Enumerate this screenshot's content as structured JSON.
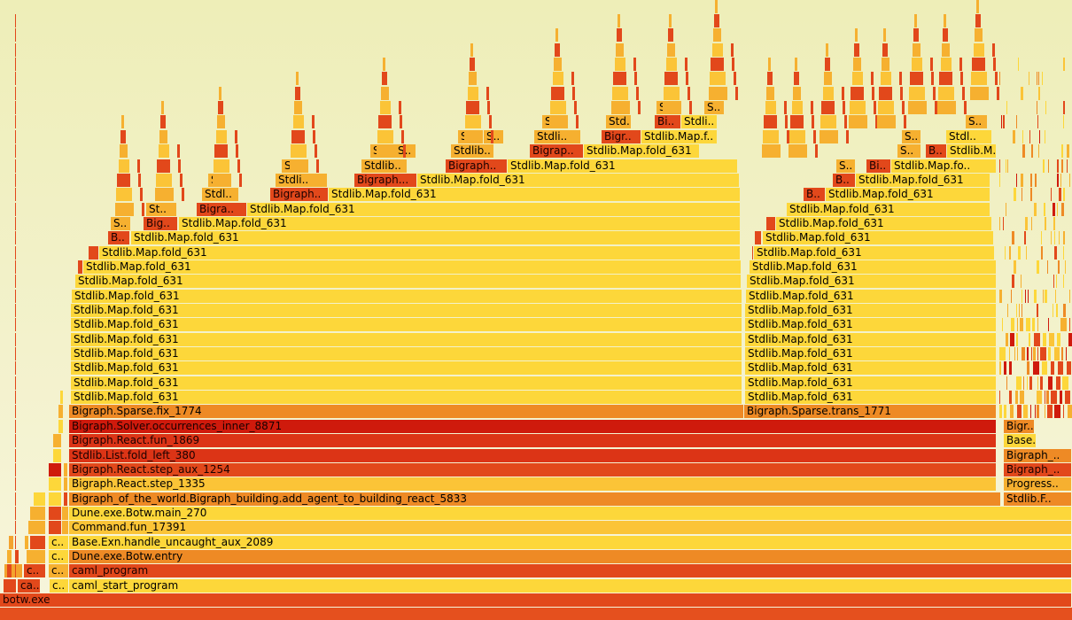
{
  "frames": [
    "botw.exe",
    "ca..",
    "c..",
    "caml_start_program",
    "c..",
    "c..",
    "caml_program",
    "c..",
    "Dune.exe.Botw.entry",
    "c..",
    "Base.Exn.handle_uncaught_aux_2089",
    "Command.fun_17391",
    "Dune.exe.Botw.main_270",
    "Bigraph_of_the_world.Bigraph_building.add_agent_to_building_react_5833",
    "Stdlib.F..",
    "Bigraph.React.step_1335",
    "Progress..",
    "Bigraph.React.step_aux_1254",
    "Bigraph_..",
    "Stdlib.List.fold_left_380",
    "Bigraph_..",
    "Bigraph.React.fun_1869",
    "Base..",
    "Bigraph.Solver.occurrences_inner_8871",
    "Bigr..",
    "Bigraph.Sparse.fix_1774",
    "Bigraph.Sparse.trans_1771",
    "Stdlib.Map.fold_631",
    "Stdlib.Map.fold_631",
    "Stdlib.Map.fold_631",
    "Stdlib.Map.fold_631",
    "Stdlib.Map.fold_631",
    "Stdlib.Map.fold_631",
    "Stdlib.Map.fold_631",
    "Stdlib.Map.fold_631",
    "Stdlib.Map.fold_631",
    "Stdlib.Map.fold_631",
    "Stdlib.Map.fold_631",
    "Stdlib.Map.fold_631",
    "Stdlib.Map.fold_631",
    "Stdlib.Map.fold_631",
    "Stdlib.Map.fold_631",
    "Stdlib.Map.fold_631",
    "Stdlib.Map.fold_631",
    "Stdlib.Map.fold_631",
    "Stdlib.Map.fold_631",
    "Stdlib.Map.fold_631",
    "Stdlib.Map.fold_631",
    "Stdlib.Map.fold_631",
    "B..",
    "Stdlib.Map.fold_631",
    "Stdlib.Map.fold_631",
    "S..",
    "Big..",
    "Stdlib.Map.fold_631",
    "Stdlib.Map.fold_631",
    "St..",
    "Bigra..",
    "Stdlib.Map.fold_631",
    "Stdlib.Map.fold_631",
    "Stdl..",
    "Bigraph..",
    "Stdlib.Map.fold_631",
    "B..",
    "Stdlib.Map.fold_631",
    "S..",
    "Stdli..",
    "Bigraph...",
    "Stdlib.Map.fold_631",
    "B..",
    "Stdlib.Map.fold_631",
    "S..",
    "Stdlib..",
    "Bigraph..",
    "Stdlib.Map.fold_631",
    "S..",
    "Bi..",
    "Stdlib.Map.fo..",
    "St..",
    "S..",
    "Stdlib..",
    "Bigrap..",
    "Stdlib.Map.fold_631",
    "S..",
    "B..",
    "Stdlib.M..",
    "S..",
    "S..",
    "Stdli..",
    "Bigr..",
    "Stdlib.Map.f..",
    "S..",
    "Stdl..",
    "S..",
    "Std..",
    "Bi..",
    "Stdli..",
    "S..",
    "S..",
    "S.."
  ]
}
